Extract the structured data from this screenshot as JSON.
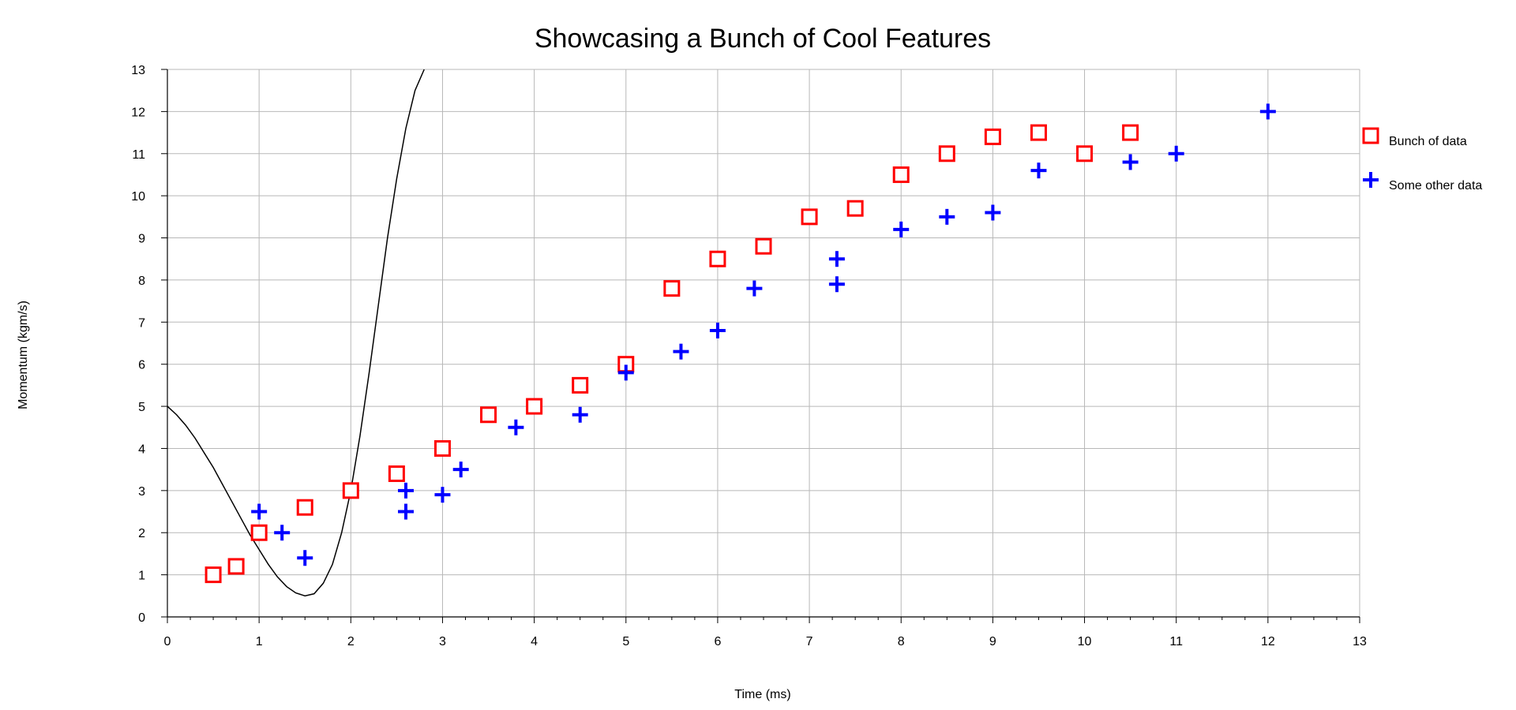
{
  "chart_data": {
    "type": "scatter",
    "title": "Showcasing a Bunch of Cool Features",
    "xlabel": "Time (ms)",
    "ylabel": "Momentum (kgm/s)",
    "xlim": [
      0,
      13
    ],
    "ylim": [
      0,
      13
    ],
    "x_ticks": [
      "0",
      "1",
      "2",
      "3",
      "4",
      "5",
      "6",
      "7",
      "8",
      "9",
      "10",
      "11",
      "12",
      "13"
    ],
    "y_ticks": [
      "0",
      "1",
      "2",
      "3",
      "4",
      "5",
      "6",
      "7",
      "8",
      "9",
      "10",
      "11",
      "12",
      "13"
    ],
    "grid": true,
    "legend_position": "right",
    "series": [
      {
        "name": "Bunch of data",
        "marker": "square",
        "color": "#ff0000",
        "x": [
          0.5,
          0.75,
          1.0,
          1.5,
          2.0,
          2.5,
          3.0,
          3.5,
          4.0,
          4.5,
          5.0,
          5.5,
          6.0,
          6.5,
          7.0,
          7.5,
          8.0,
          8.5,
          9.0,
          9.5,
          10.0,
          10.5
        ],
        "y": [
          1.0,
          1.2,
          2.0,
          2.6,
          3.0,
          3.4,
          4.0,
          4.8,
          5.0,
          5.5,
          6.0,
          7.8,
          8.5,
          8.8,
          9.5,
          9.7,
          10.5,
          11.0,
          11.4,
          11.5,
          11.0,
          11.5
        ]
      },
      {
        "name": "Some other data",
        "marker": "plus",
        "color": "#0000ff",
        "x": [
          1.0,
          1.25,
          1.5,
          2.6,
          2.6,
          3.0,
          3.2,
          3.8,
          4.5,
          5.0,
          5.6,
          6.0,
          6.4,
          7.3,
          7.3,
          8.0,
          8.5,
          9.0,
          9.5,
          10.5,
          11.0,
          12.0
        ],
        "y": [
          2.5,
          2.0,
          1.4,
          3.0,
          2.5,
          2.9,
          3.5,
          4.5,
          4.8,
          5.8,
          6.3,
          6.8,
          7.8,
          8.5,
          7.9,
          9.2,
          9.5,
          9.6,
          10.6,
          10.8,
          11.0,
          12.0
        ]
      }
    ],
    "curve": {
      "color": "#000000",
      "x": [
        0.0,
        0.1,
        0.2,
        0.3,
        0.4,
        0.5,
        0.6,
        0.7,
        0.8,
        0.9,
        1.0,
        1.1,
        1.2,
        1.3,
        1.4,
        1.5,
        1.6,
        1.7,
        1.8,
        1.9,
        2.0,
        2.1,
        2.2,
        2.3,
        2.4,
        2.5,
        2.6,
        2.7,
        2.8
      ],
      "y": [
        5.0,
        4.8,
        4.55,
        4.25,
        3.9,
        3.55,
        3.15,
        2.75,
        2.35,
        1.95,
        1.6,
        1.25,
        0.95,
        0.72,
        0.57,
        0.5,
        0.55,
        0.8,
        1.25,
        2.0,
        3.0,
        4.3,
        5.8,
        7.4,
        9.0,
        10.4,
        11.6,
        12.5,
        13.0
      ]
    }
  }
}
